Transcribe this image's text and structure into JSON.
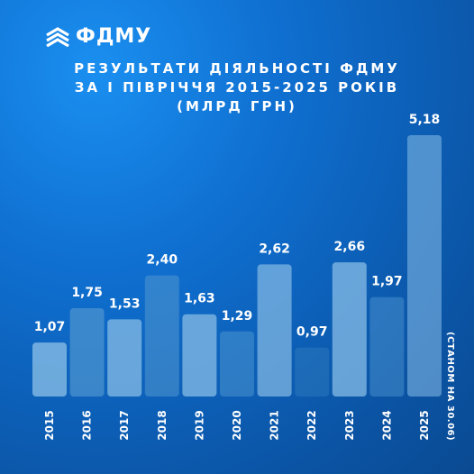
{
  "logo": {
    "text": "ФДМУ",
    "icon": "chevron-stack-icon"
  },
  "title": {
    "lines": [
      "РЕЗУЛЬТАТИ ДІЯЛЬНОСТІ ФДМУ",
      "ЗА І ПІВРІЧЧЯ 2015-2025 РОКІВ",
      "(МЛРД ГРН)"
    ]
  },
  "footnote": "(СТАНОМ НА 30.06)",
  "colors": {
    "bar_light": "#7fb6e2",
    "bar_mid": "#4b93cf",
    "bar_dark": "#2c78bd"
  },
  "chart_data": {
    "type": "bar",
    "title": "РЕЗУЛЬТАТИ ДІЯЛЬНОСТІ ФДМУ ЗА І ПІВРІЧЧЯ 2015-2025 РОКІВ (МЛРД ГРН)",
    "categories": [
      "2015",
      "2016",
      "2017",
      "2018",
      "2019",
      "2020",
      "2021",
      "2022",
      "2023",
      "2024",
      "2025"
    ],
    "values": [
      1.07,
      1.75,
      1.53,
      2.4,
      1.63,
      1.29,
      2.62,
      0.97,
      2.66,
      1.97,
      5.18
    ],
    "labels": [
      "1,07",
      "1,75",
      "1,53",
      "2,40",
      "1,63",
      "1,29",
      "2,62",
      "0,97",
      "2,66",
      "1,97",
      "5,18"
    ],
    "ylim": [
      0,
      5.18
    ],
    "grid": false,
    "legend": "none"
  }
}
